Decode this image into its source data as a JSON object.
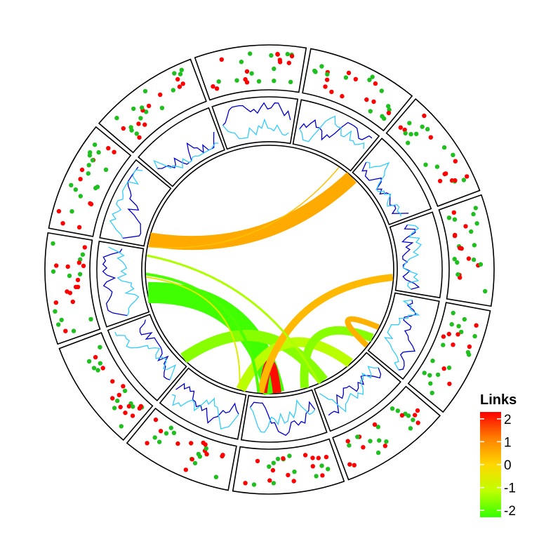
{
  "chart_data": {
    "type": "circos",
    "sectors": 12,
    "tracks": [
      {
        "name": "outer",
        "type": "scatter",
        "colors": [
          "#ff0000",
          "#1fbf1f"
        ],
        "points_per_sector": 24
      },
      {
        "name": "middle",
        "type": "line",
        "colors": [
          "#0000cc",
          "#33ccff"
        ],
        "points_per_sector": 22
      }
    ],
    "links": [
      {
        "from": [
          0,
          0.82
        ],
        "to": [
          9,
          0.0
        ],
        "value": 0.3,
        "width": 1.5
      },
      {
        "from": [
          1,
          0.04
        ],
        "to": [
          9,
          0.12
        ],
        "value": 0.6,
        "width": 20
      },
      {
        "from": [
          2,
          0.8
        ],
        "to": [
          5,
          0.82
        ],
        "value": 0.4,
        "width": 10
      },
      {
        "from": [
          3,
          0.6
        ],
        "to": [
          3,
          0.95
        ],
        "value": 0.5,
        "width": 8
      },
      {
        "from": [
          4,
          0.82
        ],
        "to": [
          7,
          0.12
        ],
        "value": -1.6,
        "width": 16
      },
      {
        "from": [
          4,
          0.9
        ],
        "to": [
          8,
          0.9
        ],
        "value": -1.3,
        "width": 3
      },
      {
        "from": [
          5,
          0.1
        ],
        "to": [
          3,
          0.8
        ],
        "value": -1.6,
        "width": 12
      },
      {
        "from": [
          5,
          0.55
        ],
        "to": [
          5,
          0.78
        ],
        "value": 2.2,
        "width": 12
      },
      {
        "from": [
          5,
          0.85
        ],
        "to": [
          8,
          0.6
        ],
        "value": -2.1,
        "width": 4
      },
      {
        "from": [
          6,
          0.12
        ],
        "to": [
          8,
          0.55
        ],
        "value": -0.6,
        "width": 2
      },
      {
        "from": [
          6,
          0.1
        ],
        "to": [
          4,
          0.3
        ],
        "value": -1.2,
        "width": 14
      },
      {
        "from": [
          8,
          0.3
        ],
        "to": [
          5,
          0.6
        ],
        "value": -2.2,
        "width": 30
      }
    ],
    "legend": {
      "title": "Links",
      "ticks": [
        "2",
        "1",
        "0",
        "-1",
        "-2"
      ],
      "range": [
        -2.3,
        2.3
      ],
      "colors": [
        "#ff0000",
        "#ff8000",
        "#ffd700",
        "#bfff00",
        "#33ff00"
      ],
      "placement": "bottom-right"
    }
  }
}
